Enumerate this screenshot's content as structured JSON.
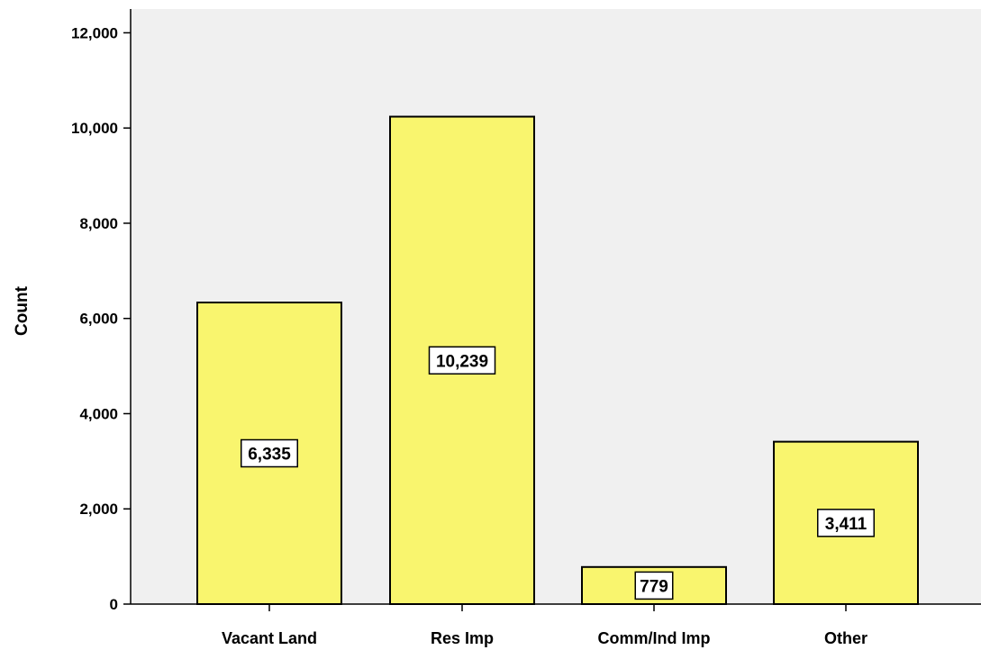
{
  "chart_data": {
    "type": "bar",
    "categories": [
      "Vacant Land",
      "Res Imp",
      "Comm/Ind Imp",
      "Other"
    ],
    "values": [
      6335,
      10239,
      779,
      3411
    ],
    "data_labels": [
      "6,335",
      "10,239",
      "779",
      "3,411"
    ],
    "title": "",
    "xlabel": "",
    "ylabel": "Count",
    "ylim": [
      0,
      12500
    ],
    "yticks": [
      0,
      2000,
      4000,
      6000,
      8000,
      10000,
      12000
    ],
    "ytick_labels": [
      "0",
      "2,000",
      "4,000",
      "6,000",
      "8,000",
      "10,000",
      "12,000"
    ],
    "grid": false,
    "legend": "none",
    "colors": {
      "plot_background": "#f0f0f0",
      "bar_fill": "#f9f56e",
      "bar_stroke": "#000000",
      "label_box": "#ffffff"
    }
  }
}
